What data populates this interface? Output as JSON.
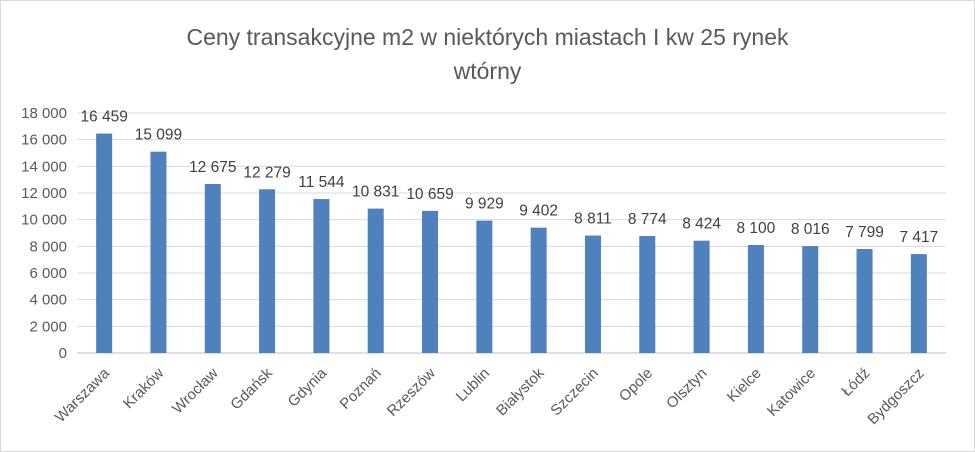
{
  "chart_data": {
    "type": "bar",
    "title_lines": [
      "Ceny transakcyjne m2 w niektórych miastach I kw 25 rynek",
      "wtórny"
    ],
    "categories": [
      "Warszawa",
      "Kraków",
      "Wrocław",
      "Gdańsk",
      "Gdynia",
      "Poznań",
      "Rzeszów",
      "Lublin",
      "Białystok",
      "Szczecin",
      "Opole",
      "Olsztyn",
      "Kielce",
      "Katowice",
      "Łódź",
      "Bydgoszcz"
    ],
    "values": [
      16459,
      15099,
      12675,
      12279,
      11544,
      10831,
      10659,
      9929,
      9402,
      8811,
      8774,
      8424,
      8100,
      8016,
      7799,
      7417
    ],
    "data_labels": [
      "16 459",
      "15 099",
      "12 675",
      "12 279",
      "11 544",
      "10 831",
      "10 659",
      "9 929",
      "9 402",
      "8 811",
      "8 774",
      "8 424",
      "8 100",
      "8 016",
      "7 799",
      "7 417"
    ],
    "y_ticks": [
      0,
      2000,
      4000,
      6000,
      8000,
      10000,
      12000,
      14000,
      16000,
      18000
    ],
    "y_tick_labels": [
      "0",
      "2 000",
      "4 000",
      "6 000",
      "8 000",
      "10 000",
      "12 000",
      "14 000",
      "16 000",
      "18 000"
    ],
    "ylim": [
      0,
      18000
    ],
    "grid": true,
    "legend": "none",
    "colors": {
      "bar": "#4f81bd",
      "grid": "#d9d9d9",
      "axis": "#bfbfbf",
      "text": "#595959"
    }
  }
}
